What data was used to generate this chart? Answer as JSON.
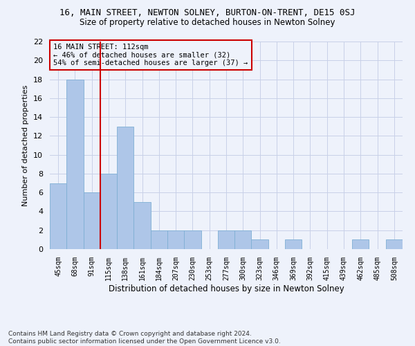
{
  "title": "16, MAIN STREET, NEWTON SOLNEY, BURTON-ON-TRENT, DE15 0SJ",
  "subtitle": "Size of property relative to detached houses in Newton Solney",
  "xlabel": "Distribution of detached houses by size in Newton Solney",
  "ylabel": "Number of detached properties",
  "categories": [
    "45sqm",
    "68sqm",
    "91sqm",
    "115sqm",
    "138sqm",
    "161sqm",
    "184sqm",
    "207sqm",
    "230sqm",
    "253sqm",
    "277sqm",
    "300sqm",
    "323sqm",
    "346sqm",
    "369sqm",
    "392sqm",
    "415sqm",
    "439sqm",
    "462sqm",
    "485sqm",
    "508sqm"
  ],
  "values": [
    7,
    18,
    6,
    8,
    13,
    5,
    2,
    2,
    2,
    0,
    2,
    2,
    1,
    0,
    1,
    0,
    0,
    0,
    1,
    0,
    1
  ],
  "bar_color": "#aec6e8",
  "bar_edge_color": "#7fafd4",
  "vline_x": 2.5,
  "vline_color": "#cc0000",
  "ylim": [
    0,
    22
  ],
  "yticks": [
    0,
    2,
    4,
    6,
    8,
    10,
    12,
    14,
    16,
    18,
    20,
    22
  ],
  "annotation_line1": "16 MAIN STREET: 112sqm",
  "annotation_line2": "← 46% of detached houses are smaller (32)",
  "annotation_line3": "54% of semi-detached houses are larger (37) →",
  "annotation_box_color": "#cc0000",
  "footer_line1": "Contains HM Land Registry data © Crown copyright and database right 2024.",
  "footer_line2": "Contains public sector information licensed under the Open Government Licence v3.0.",
  "background_color": "#eef2fb",
  "grid_color": "#c8d0e8"
}
